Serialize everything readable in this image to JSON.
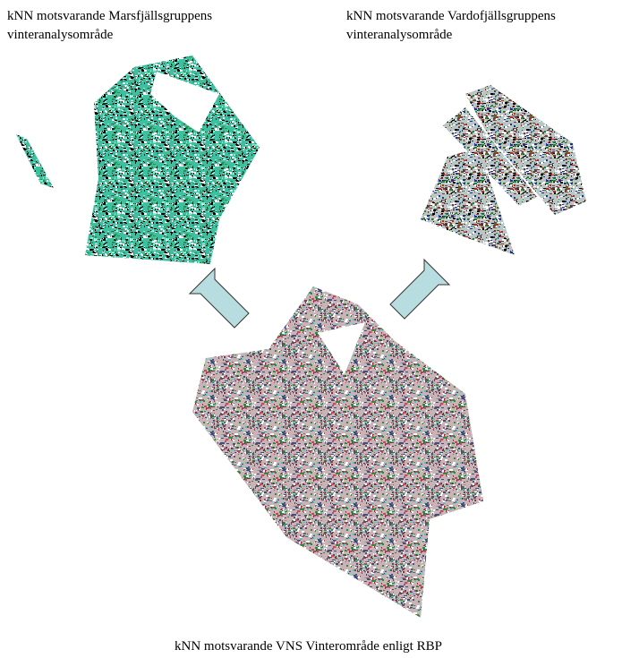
{
  "captions": {
    "left": [
      "kNN motsvarande Marsfjällsgruppens",
      "vinteranalysområde"
    ],
    "right": [
      "kNN motsvarande Vardofjällsgruppens",
      "vinteranalysområde"
    ],
    "bottom": "kNN motsvarande VNS Vinterområde enligt RBP"
  }
}
